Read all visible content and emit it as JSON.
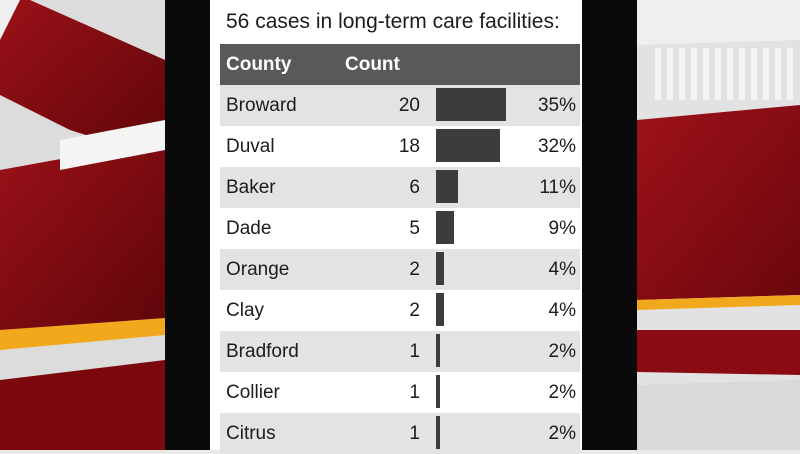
{
  "chart_data": {
    "type": "table",
    "title": "56 cases in long-term care facilities:",
    "columns": [
      "County",
      "Count"
    ],
    "rows": [
      {
        "county": "Broward",
        "count": 20,
        "pct": "35%",
        "share": 0.35
      },
      {
        "county": "Duval",
        "count": 18,
        "pct": "32%",
        "share": 0.32
      },
      {
        "county": "Baker",
        "count": 6,
        "pct": "11%",
        "share": 0.11
      },
      {
        "county": "Dade",
        "count": 5,
        "pct": "9%",
        "share": 0.09
      },
      {
        "county": "Orange",
        "count": 2,
        "pct": "4%",
        "share": 0.04
      },
      {
        "county": "Clay",
        "count": 2,
        "pct": "4%",
        "share": 0.04
      },
      {
        "county": "Bradford",
        "count": 1,
        "pct": "2%",
        "share": 0.02
      },
      {
        "county": "Collier",
        "count": 1,
        "pct": "2%",
        "share": 0.02
      },
      {
        "county": "Citrus",
        "count": 1,
        "pct": "2%",
        "share": 0.02
      }
    ]
  },
  "colors": {
    "header_bg": "#595959",
    "bar": "#3c3c3c",
    "row_shade": "#e3e3e3",
    "accent_red": "#8f0d13",
    "accent_gold": "#f2a81d"
  }
}
